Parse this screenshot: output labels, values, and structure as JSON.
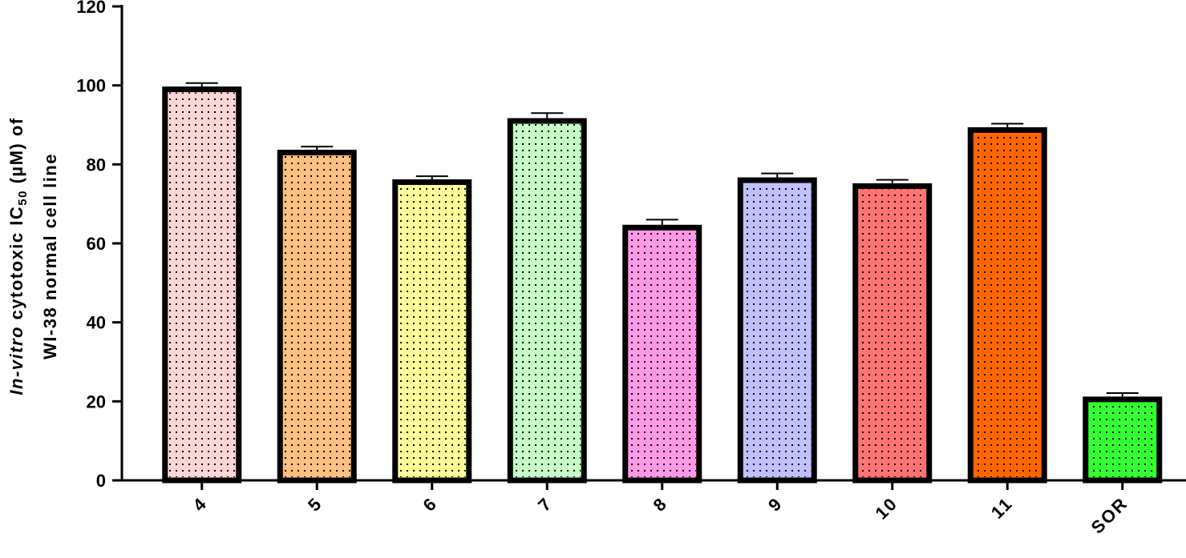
{
  "chart_data": {
    "type": "bar",
    "y_label": {
      "line1": [
        "In-vitro",
        " cytotoxic IC",
        "50",
        " (µM) of"
      ],
      "line2": "WI-38 normal cell line"
    },
    "categories": [
      "4",
      "5",
      "6",
      "7",
      "8",
      "9",
      "10",
      "11",
      "SOR"
    ],
    "values": [
      99,
      83,
      75.5,
      91,
      64,
      76,
      74.5,
      88.7,
      20.5
    ],
    "errors": [
      1.6,
      1.5,
      1.5,
      2,
      2,
      1.7,
      1.6,
      1.6,
      1.6
    ],
    "colors": [
      "#ffd6d6",
      "#ffbf80",
      "#ffff99",
      "#c6ffc6",
      "#ff99e6",
      "#c0c0ff",
      "#ff7373",
      "#ff6600",
      "#33ff33"
    ],
    "ylim": [
      0,
      120
    ],
    "yticks": [
      0,
      20,
      40,
      60,
      80,
      100,
      120
    ]
  }
}
